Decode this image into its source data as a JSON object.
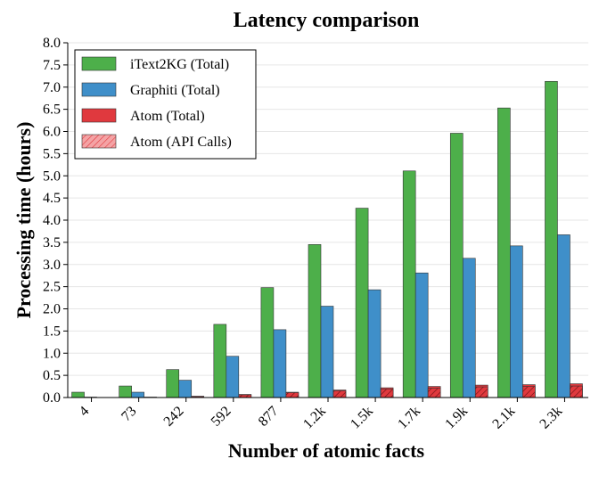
{
  "chart_data": {
    "type": "bar",
    "title": "Latency comparison",
    "xlabel": "Number of atomic facts",
    "ylabel": "Processing time (hours)",
    "ylim": [
      0,
      8.0
    ],
    "yticks": [
      "0.0",
      "0.5",
      "1.0",
      "1.5",
      "2.0",
      "2.5",
      "3.0",
      "3.5",
      "4.0",
      "4.5",
      "5.0",
      "5.5",
      "6.0",
      "6.5",
      "7.0",
      "7.5",
      "8.0"
    ],
    "grid": true,
    "legend_position": "top-left",
    "categories": [
      "4",
      "73",
      "242",
      "592",
      "877",
      "1.2k",
      "1.5k",
      "1.7k",
      "1.9k",
      "2.1k",
      "2.3k"
    ],
    "series": [
      {
        "name": "iText2KG (Total)",
        "color": "#4daf4a",
        "values": [
          0.12,
          0.26,
          0.63,
          1.65,
          2.48,
          3.45,
          4.27,
          5.11,
          5.96,
          6.53,
          7.13
        ]
      },
      {
        "name": "Graphiti (Total)",
        "color": "#3f8fc9",
        "values": [
          0.01,
          0.12,
          0.39,
          0.93,
          1.53,
          2.06,
          2.43,
          2.81,
          3.14,
          3.42,
          3.67
        ]
      },
      {
        "name": "Atom (Total)",
        "color": "#e0393e",
        "values": [
          0.0,
          0.01,
          0.03,
          0.07,
          0.12,
          0.17,
          0.22,
          0.25,
          0.28,
          0.29,
          0.31
        ]
      },
      {
        "name": "Atom (API Calls)",
        "color": "#e0393e",
        "hatch": true,
        "values": [
          0.0,
          0.005,
          0.02,
          0.06,
          0.11,
          0.15,
          0.19,
          0.21,
          0.24,
          0.25,
          0.26
        ]
      }
    ]
  }
}
